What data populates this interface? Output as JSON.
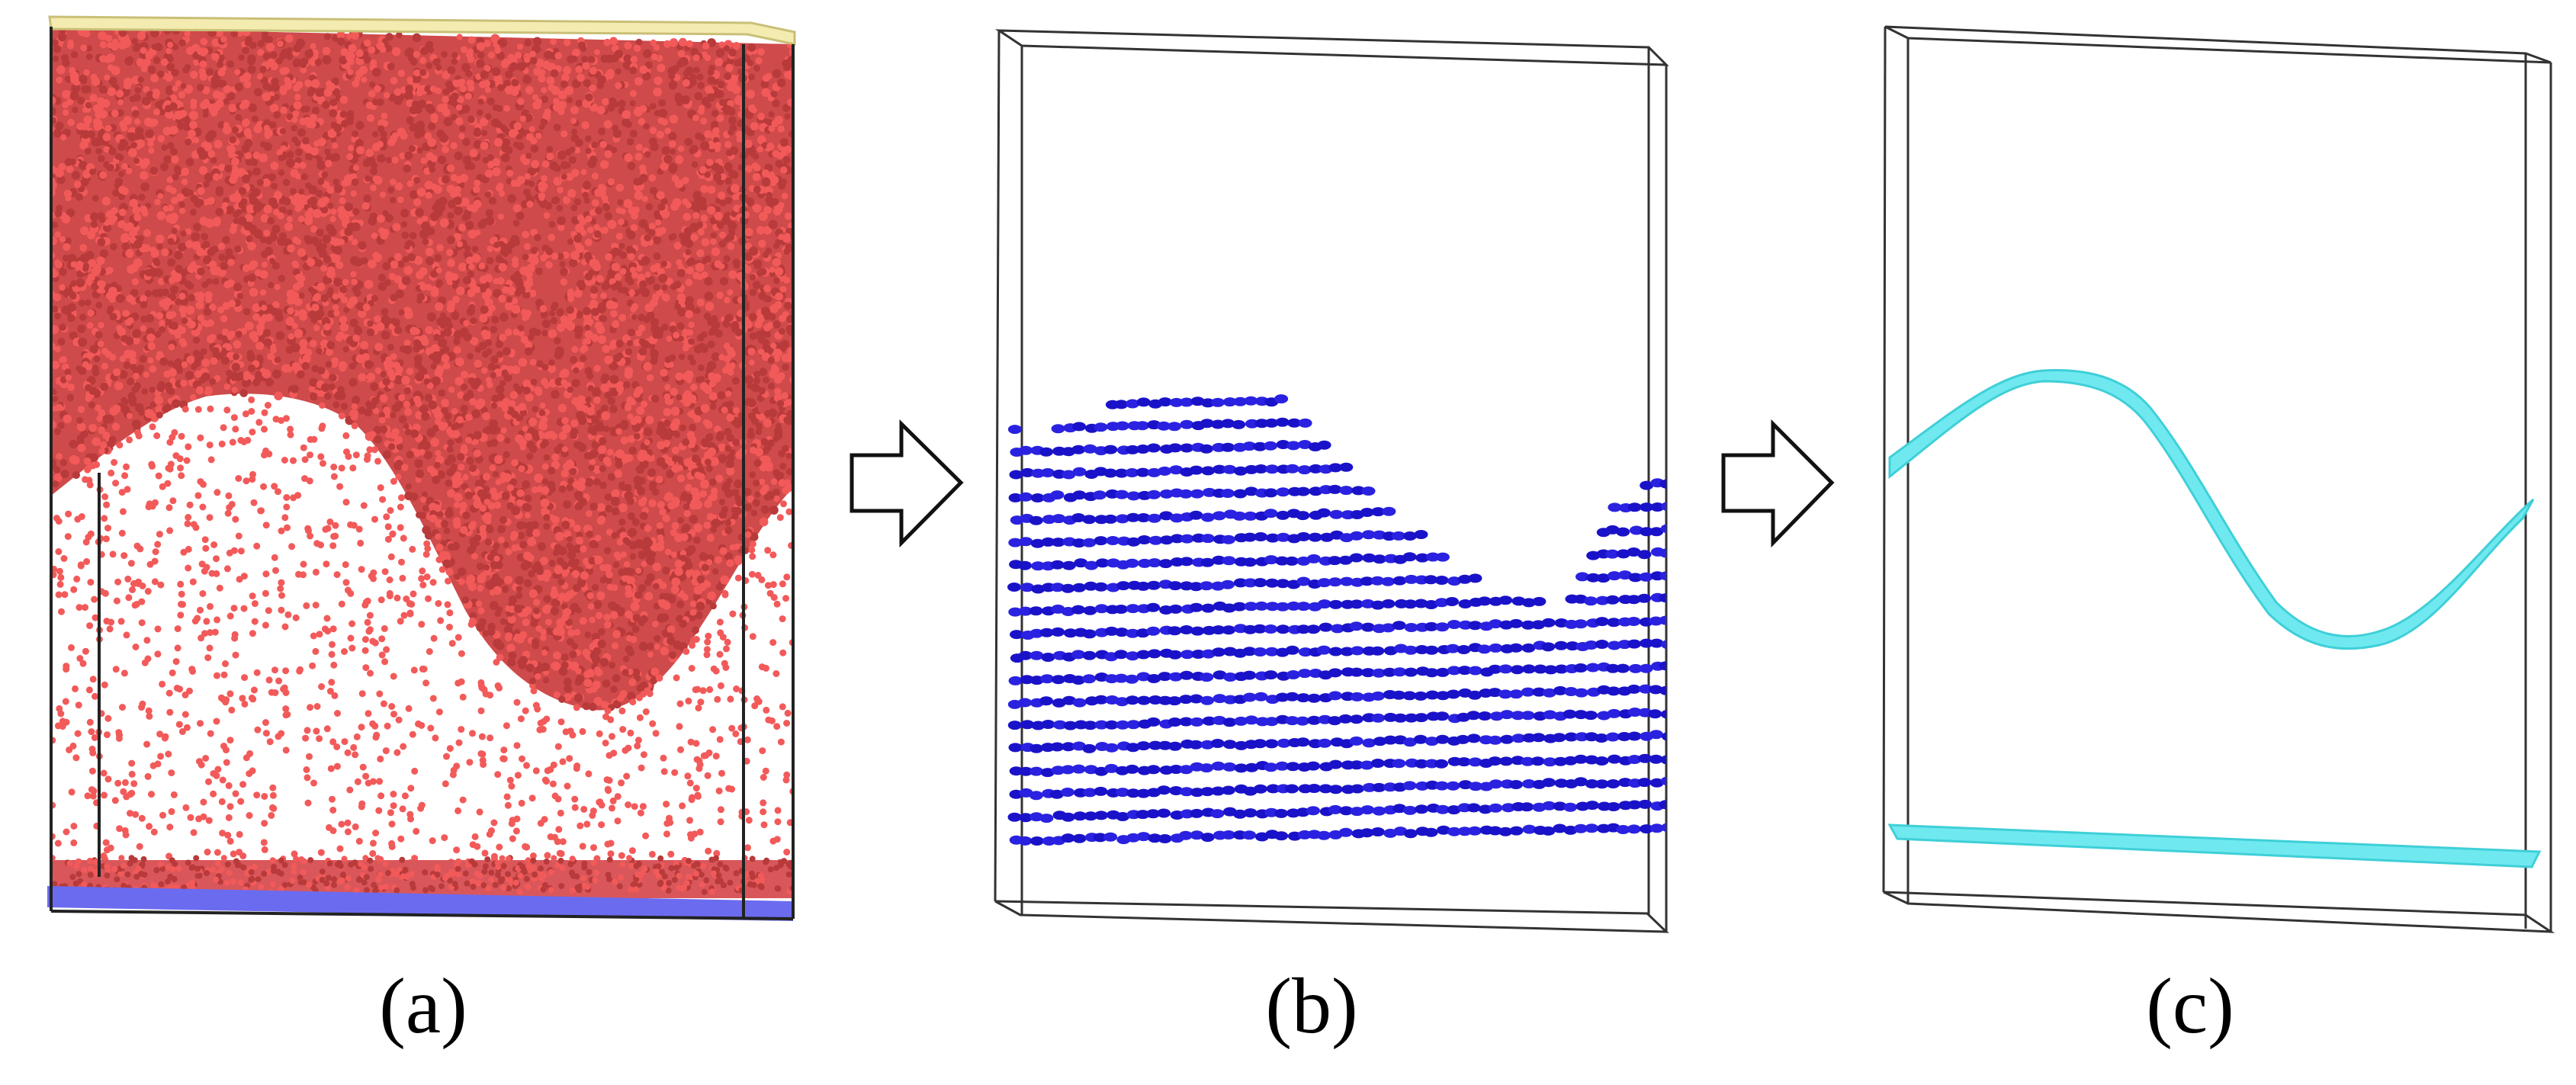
{
  "panels": [
    {
      "label": "(a)",
      "particle_color": "#f25a5a",
      "top_wall_color": "#f3ebb0",
      "bottom_wall_color": "#6b6bf0"
    },
    {
      "label": "(b)",
      "particle_color": "#1a12c8"
    },
    {
      "label": "(c)",
      "surface_color": "#6fe9ef",
      "surface_edge_color": "#3fcfd8"
    }
  ],
  "arrows": [
    {
      "icon": "right-arrow-icon"
    },
    {
      "icon": "right-arrow-icon"
    }
  ],
  "frame_color": "#333333"
}
